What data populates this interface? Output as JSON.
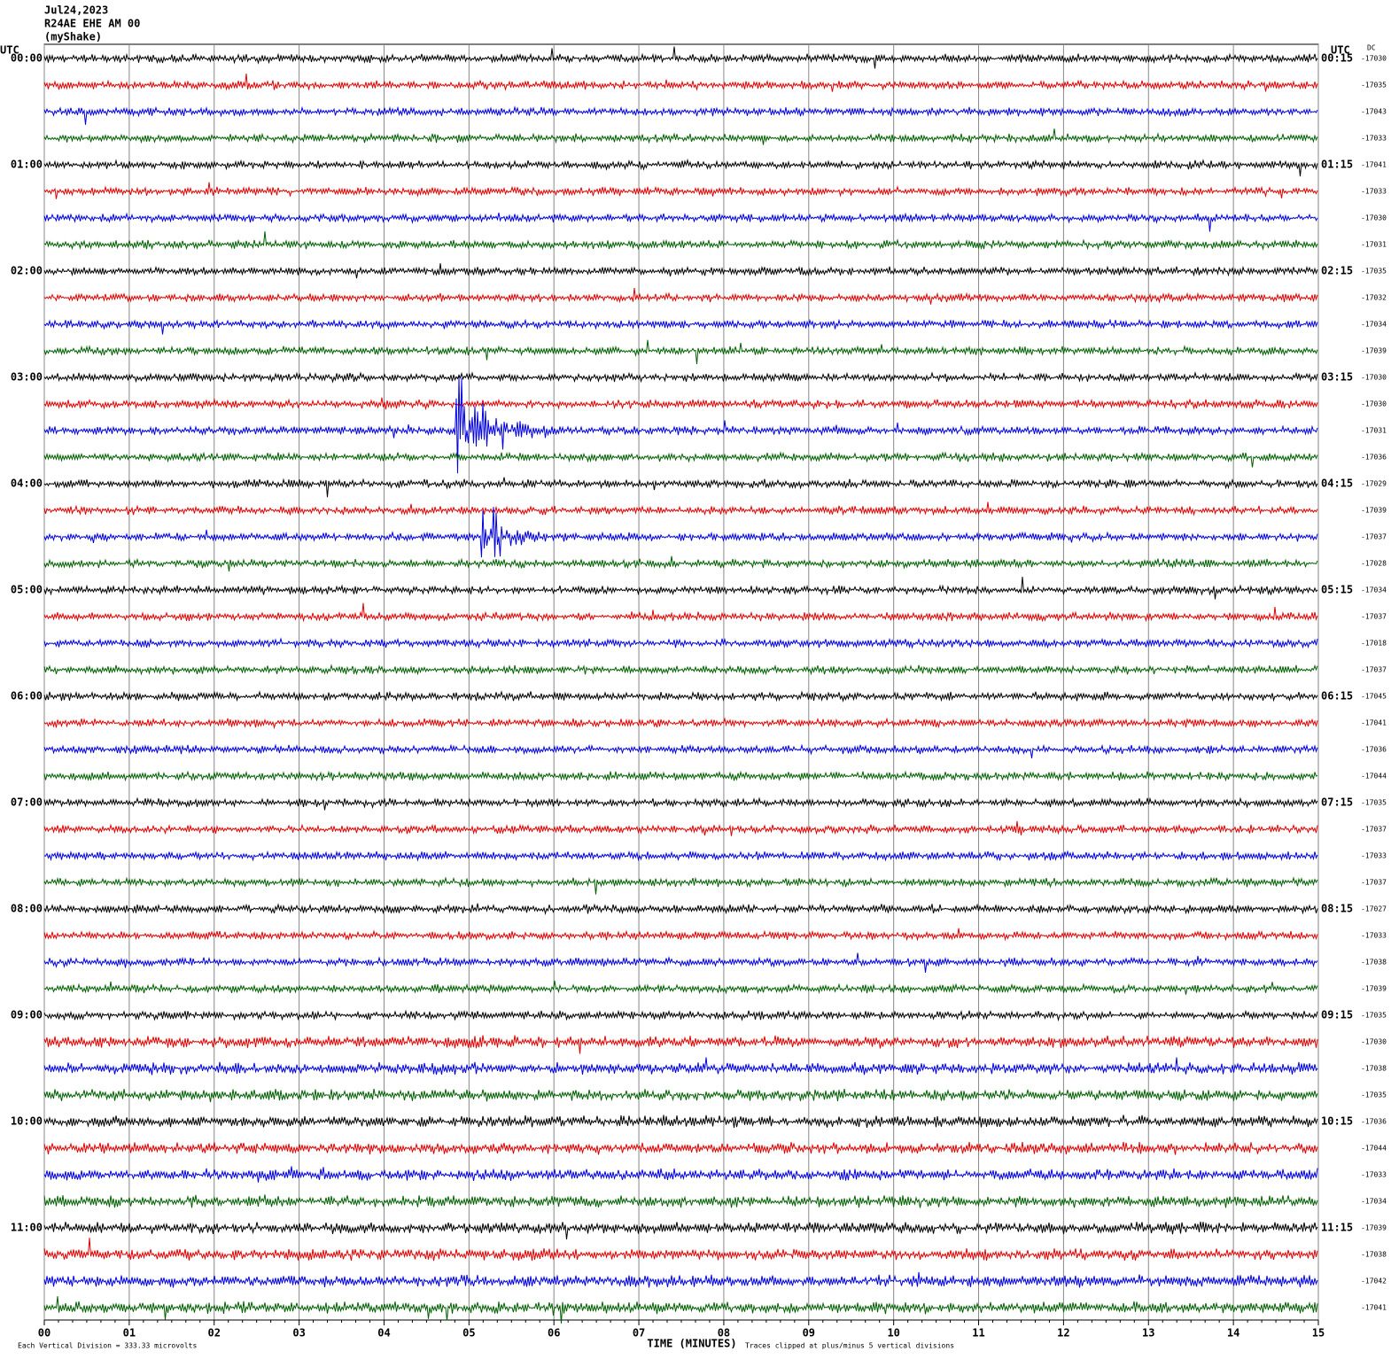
{
  "header": {
    "date": "Jul24,2023",
    "station": "R24AE EHE AM 00",
    "network": "(myShake)"
  },
  "left_axis": {
    "title": "UTC",
    "labels": [
      "00:00",
      "01:00",
      "02:00",
      "03:00",
      "04:00",
      "05:00",
      "06:00",
      "07:00",
      "08:00",
      "09:00",
      "10:00",
      "11:00"
    ]
  },
  "right_axis": {
    "title": "UTC",
    "dc_title": "DC",
    "labels": [
      "00:15",
      "01:15",
      "02:15",
      "03:15",
      "04:15",
      "05:15",
      "06:15",
      "07:15",
      "08:15",
      "09:15",
      "10:15",
      "11:15"
    ],
    "dc_offsets": [
      -17030,
      -17035,
      -17043,
      -17033,
      -17041,
      -17033,
      -17030,
      -17031,
      -17035,
      -17032,
      -17034,
      -17039,
      -17030,
      -17030,
      -17031,
      -17036,
      -17029,
      -17039,
      -17037,
      -17028,
      -17034,
      -17037,
      -17018,
      -17037,
      -17045,
      -17041,
      -17036,
      -17044,
      -17035,
      -17037,
      -17033,
      -17037,
      -17027,
      -17033,
      -17038,
      -17039,
      -17035,
      -17030,
      -17038,
      -17035,
      -17036,
      -17044,
      -17033,
      -17034,
      -17039,
      -17038,
      -17042,
      -17041
    ]
  },
  "x_axis": {
    "title": "TIME (MINUTES)",
    "ticks": [
      "00",
      "01",
      "02",
      "03",
      "04",
      "05",
      "06",
      "07",
      "08",
      "09",
      "10",
      "11",
      "12",
      "13",
      "14",
      "15"
    ]
  },
  "footer": {
    "scale": "Each Vertical Division =  333.33 microvolts",
    "clip": "Traces clipped at plus/minus 5 vertical divisions"
  }
}
